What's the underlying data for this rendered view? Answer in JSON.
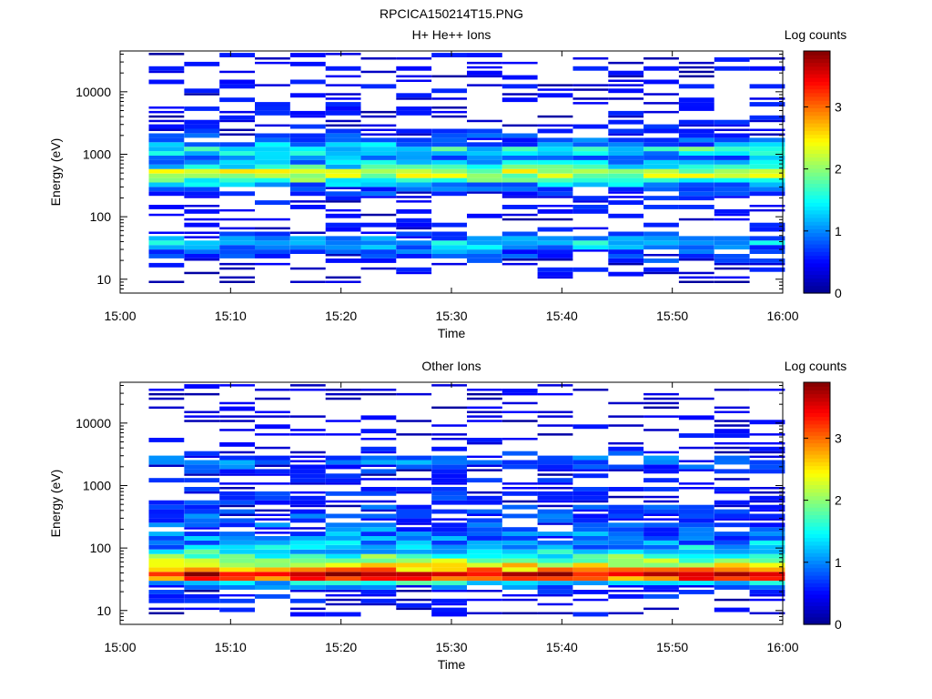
{
  "figure_title": "RPCICA150214T15.PNG",
  "colormap": [
    "#00008f",
    "#0000ff",
    "#0080ff",
    "#00ffff",
    "#80ff80",
    "#ffff00",
    "#ff8000",
    "#ff0000",
    "#800000"
  ],
  "chart_data": [
    {
      "type": "heatmap",
      "title": "H+ He++ Ions",
      "xlabel": "Time",
      "ylabel": "Energy (eV)",
      "yscale": "log",
      "ylim": [
        6,
        45000
      ],
      "x_tick_labels": [
        "15:00",
        "15:10",
        "15:20",
        "15:30",
        "15:40",
        "15:50",
        "16:00"
      ],
      "y_tick_labels": [
        "10",
        "100",
        "1000",
        "10000"
      ],
      "colorbar": {
        "label": "Log counts",
        "range": [
          0,
          3.9
        ],
        "tick_labels": [
          "0",
          "1",
          "2",
          "3"
        ]
      },
      "time_bins_start_min": [
        2.6,
        5.8,
        9.0,
        12.2,
        15.4,
        18.6,
        21.8,
        25.0,
        28.2,
        31.4,
        34.6,
        37.8,
        41.0,
        44.2,
        47.4,
        50.6,
        53.8,
        57.0
      ],
      "profile_energy_eV": [
        10,
        25,
        30,
        38,
        45,
        60,
        100,
        200,
        300,
        400,
        500,
        650,
        900,
        1200,
        1600,
        2500,
        5000,
        10000,
        20000,
        35000
      ],
      "profile_log_counts": [
        0,
        0.6,
        0.9,
        1.3,
        0.8,
        0.2,
        0.2,
        0.3,
        0.8,
        1.9,
        2.4,
        1.4,
        0.9,
        1.6,
        0.7,
        0.3,
        0.2,
        0.2,
        0.2,
        0.2
      ]
    },
    {
      "type": "heatmap",
      "title": "Other Ions",
      "xlabel": "Time",
      "ylabel": "Energy (eV)",
      "yscale": "log",
      "ylim": [
        6,
        45000
      ],
      "x_tick_labels": [
        "15:00",
        "15:10",
        "15:20",
        "15:30",
        "15:40",
        "15:50",
        "16:00"
      ],
      "y_tick_labels": [
        "10",
        "100",
        "1000",
        "10000"
      ],
      "colorbar": {
        "label": "Log counts",
        "range": [
          0,
          3.9
        ],
        "tick_labels": [
          "0",
          "1",
          "2",
          "3"
        ]
      },
      "time_bins_start_min": [
        2.6,
        5.8,
        9.0,
        12.2,
        15.4,
        18.6,
        21.8,
        25.0,
        28.2,
        31.4,
        34.6,
        37.8,
        41.0,
        44.2,
        47.4,
        50.6,
        53.8,
        57.0
      ],
      "profile_energy_eV": [
        10,
        15,
        22,
        27,
        32,
        38,
        45,
        55,
        70,
        100,
        150,
        250,
        400,
        600,
        1000,
        1500,
        2400,
        4000,
        15000
      ],
      "profile_log_counts": [
        0.2,
        0.3,
        0.5,
        1.2,
        3.0,
        3.6,
        2.8,
        2.3,
        1.8,
        1.2,
        0.9,
        0.7,
        0.6,
        0.4,
        0.3,
        0.3,
        0.8,
        0.2,
        0.1
      ]
    }
  ]
}
